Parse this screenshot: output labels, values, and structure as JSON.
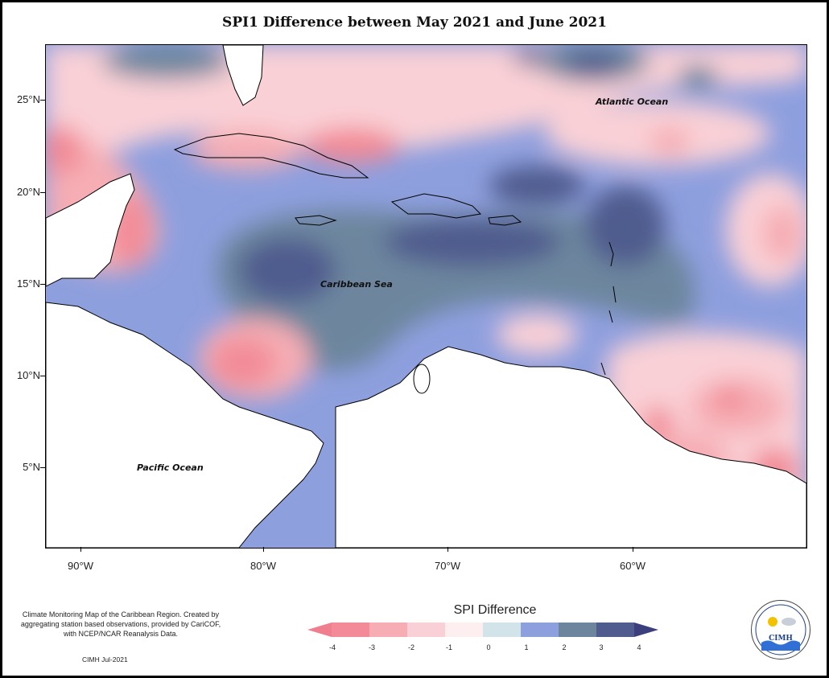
{
  "map": {
    "title": "SPI1 Difference between May 2021 and June 2021",
    "lat_labels": [
      "25°N",
      "20°N",
      "15°N",
      "10°N",
      "5°N"
    ],
    "lon_labels": [
      "90°W",
      "80°W",
      "70°W",
      "60°W"
    ],
    "places": {
      "atlantic": "Atlantic Ocean",
      "caribbean": "Caribbean Sea",
      "pacific": "Pacific Ocean"
    }
  },
  "legend": {
    "title": "SPI Difference",
    "labels": [
      "-4",
      "-3",
      "-2",
      "-1",
      "0",
      "1",
      "2",
      "3",
      "4"
    ],
    "colors": [
      "#f28b97",
      "#f6adb4",
      "#f9d0d6",
      "#fdeef0",
      "#d2e3ea",
      "#8e9fde",
      "#6d869e",
      "#505b8e"
    ],
    "end_low_color": "#ef7f8e",
    "end_high_color": "#3b3f7c"
  },
  "footer": {
    "note": "Climate Monitoring Map of the Caribbean Region. Created by aggregating station based observations, provided by CariCOF, with NCEP/NCAR Reanalysis Data.",
    "credit": "CIMH Jul-2021"
  },
  "logo": {
    "text": "CIMH"
  }
}
